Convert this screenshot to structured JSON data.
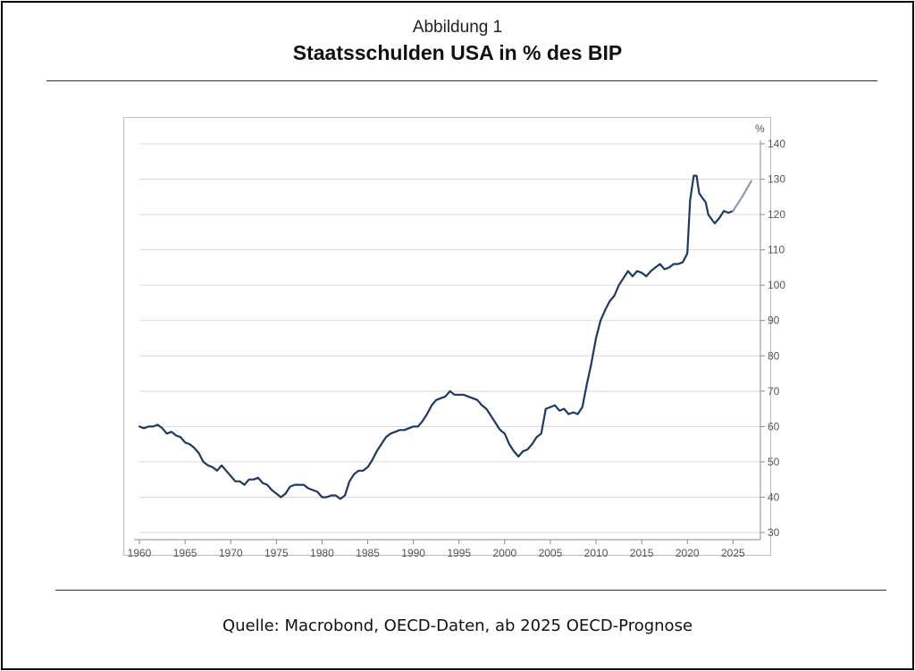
{
  "figure": {
    "subtitle": "Abbildung 1",
    "title": "Staatsschulden USA in % des BIP",
    "source": "Quelle: Macrobond, OECD-Daten, ab 2025 OECD-Prognose"
  },
  "chart_data": {
    "type": "line",
    "unit_label": "%",
    "xlim": [
      1960,
      2028
    ],
    "ylim": [
      30,
      140
    ],
    "x_ticks": [
      1960,
      1965,
      1970,
      1975,
      1980,
      1985,
      1990,
      1995,
      2000,
      2005,
      2010,
      2015,
      2020,
      2025
    ],
    "y_ticks": [
      30,
      40,
      50,
      60,
      70,
      80,
      90,
      100,
      110,
      120,
      130,
      140
    ],
    "grid": "horizontal",
    "y_axis_position": "right",
    "colors": {
      "actual": "#1f3864",
      "forecast": "#8c9bb5"
    },
    "series": [
      {
        "values": [
          [
            1960,
            60
          ],
          [
            1960.5,
            59.5
          ],
          [
            1961,
            60
          ],
          [
            1961.5,
            60
          ],
          [
            1962,
            60.5
          ],
          [
            1962.5,
            59.5
          ],
          [
            1963,
            58
          ],
          [
            1963.5,
            58.5
          ],
          [
            1964,
            57.5
          ],
          [
            1964.5,
            57
          ],
          [
            1965,
            55.5
          ],
          [
            1965.5,
            55
          ],
          [
            1966,
            54
          ],
          [
            1966.5,
            52.5
          ],
          [
            1967,
            50
          ],
          [
            1967.5,
            49
          ],
          [
            1968,
            48.5
          ],
          [
            1968.5,
            47.5
          ],
          [
            1969,
            49
          ],
          [
            1969.5,
            47.5
          ],
          [
            1970,
            46
          ],
          [
            1970.5,
            44.5
          ],
          [
            1971,
            44.5
          ],
          [
            1971.5,
            43.5
          ],
          [
            1972,
            45
          ],
          [
            1972.5,
            45
          ],
          [
            1973,
            45.5
          ],
          [
            1973.5,
            44
          ],
          [
            1974,
            43.5
          ],
          [
            1974.5,
            42
          ],
          [
            1975,
            41
          ],
          [
            1975.5,
            40
          ],
          [
            1976,
            41
          ],
          [
            1976.5,
            43
          ],
          [
            1977,
            43.5
          ],
          [
            1977.5,
            43.5
          ],
          [
            1978,
            43.5
          ],
          [
            1978.5,
            42.5
          ],
          [
            1979,
            42
          ],
          [
            1979.5,
            41.5
          ],
          [
            1980,
            40
          ],
          [
            1980.5,
            40
          ],
          [
            1981,
            40.5
          ],
          [
            1981.5,
            40.5
          ],
          [
            1982,
            39.5
          ],
          [
            1982.5,
            40.5
          ],
          [
            1983,
            44.5
          ],
          [
            1983.5,
            46.5
          ],
          [
            1984,
            47.5
          ],
          [
            1984.5,
            47.5
          ],
          [
            1985,
            48.5
          ],
          [
            1985.5,
            50.5
          ],
          [
            1986,
            53
          ],
          [
            1986.5,
            55
          ],
          [
            1987,
            57
          ],
          [
            1987.5,
            58
          ],
          [
            1988,
            58.5
          ],
          [
            1988.5,
            59
          ],
          [
            1989,
            59
          ],
          [
            1989.5,
            59.5
          ],
          [
            1990,
            60
          ],
          [
            1990.5,
            60
          ],
          [
            1991,
            61.5
          ],
          [
            1991.5,
            63.5
          ],
          [
            1992,
            66
          ],
          [
            1992.5,
            67.5
          ],
          [
            1993,
            68
          ],
          [
            1993.5,
            68.5
          ],
          [
            1994,
            70
          ],
          [
            1994.5,
            69
          ],
          [
            1995,
            69
          ],
          [
            1995.5,
            69
          ],
          [
            1996,
            68.5
          ],
          [
            1996.5,
            68
          ],
          [
            1997,
            67.5
          ],
          [
            1997.5,
            66
          ],
          [
            1998,
            65
          ],
          [
            1998.5,
            63
          ],
          [
            1999,
            61
          ],
          [
            1999.5,
            59
          ],
          [
            2000,
            58
          ],
          [
            2000.5,
            55
          ],
          [
            2001,
            53
          ],
          [
            2001.5,
            51.5
          ],
          [
            2002,
            53
          ],
          [
            2002.5,
            53.5
          ],
          [
            2003,
            55
          ],
          [
            2003.5,
            57
          ],
          [
            2004,
            58
          ],
          [
            2004.5,
            65
          ],
          [
            2005,
            65.5
          ],
          [
            2005.5,
            66
          ],
          [
            2006,
            64.5
          ],
          [
            2006.5,
            65
          ],
          [
            2007,
            63.5
          ],
          [
            2007.5,
            64
          ],
          [
            2008,
            63.5
          ],
          [
            2008.5,
            65.5
          ],
          [
            2009,
            72
          ],
          [
            2009.5,
            78
          ],
          [
            2010,
            85
          ],
          [
            2010.5,
            90
          ],
          [
            2011,
            93
          ],
          [
            2011.5,
            95.5
          ],
          [
            2012,
            97
          ],
          [
            2012.5,
            100
          ],
          [
            2013,
            102
          ],
          [
            2013.5,
            104
          ],
          [
            2014,
            102.5
          ],
          [
            2014.5,
            104
          ],
          [
            2015,
            103.5
          ],
          [
            2015.5,
            102.5
          ],
          [
            2016,
            104
          ],
          [
            2016.5,
            105
          ],
          [
            2017,
            106
          ],
          [
            2017.5,
            104.5
          ],
          [
            2018,
            105
          ],
          [
            2018.5,
            106
          ],
          [
            2019,
            106
          ],
          [
            2019.5,
            106.5
          ],
          [
            2020,
            109
          ],
          [
            2020.3,
            124
          ],
          [
            2020.7,
            131
          ],
          [
            2021,
            131
          ],
          [
            2021.3,
            126
          ],
          [
            2021.7,
            124.5
          ],
          [
            2022,
            123.5
          ],
          [
            2022.3,
            120
          ],
          [
            2022.7,
            118.5
          ],
          [
            2023,
            117.5
          ],
          [
            2023.5,
            119
          ],
          [
            2024,
            121
          ],
          [
            2024.5,
            120.5
          ],
          [
            2025,
            121
          ]
        ]
      },
      {
        "values": [
          [
            2025,
            121
          ],
          [
            2026,
            125
          ],
          [
            2027,
            129.5
          ]
        ]
      }
    ]
  }
}
